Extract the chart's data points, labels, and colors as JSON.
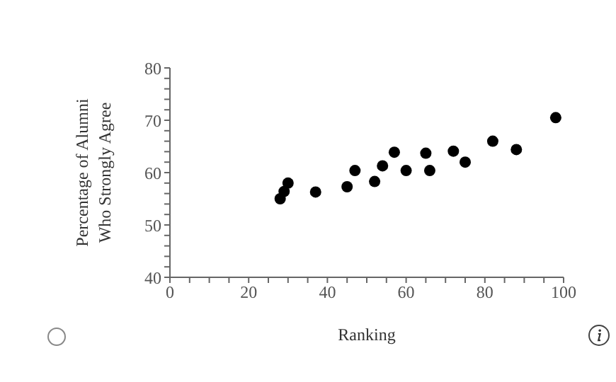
{
  "chart_data": {
    "type": "scatter",
    "xlabel": "Ranking",
    "ylabel": "Percentage of Alumni Who Strongly Agree",
    "x": [
      28,
      29,
      30,
      37,
      45,
      47,
      52,
      54,
      57,
      60,
      65,
      66,
      72,
      75,
      82,
      88,
      98
    ],
    "values": [
      55,
      56.4,
      58,
      56.3,
      57.3,
      60.4,
      58.3,
      61.3,
      63.9,
      60.4,
      63.7,
      60.4,
      64.1,
      62,
      66,
      64.4,
      70.5
    ],
    "color": "#000000",
    "marker": "circle",
    "grid": false,
    "xlim": [
      0,
      100
    ],
    "xticks": [
      0,
      {
        "value": 5,
        "label": null
      },
      {
        "value": 10,
        "label": null
      },
      {
        "value": 15,
        "label": null
      },
      20,
      {
        "value": 25,
        "label": null
      },
      {
        "value": 30,
        "label": null
      },
      {
        "value": 35,
        "label": null
      },
      40,
      {
        "value": 45,
        "label": null
      },
      {
        "value": 50,
        "label": null
      },
      {
        "value": 55,
        "label": null
      },
      60,
      {
        "value": 65,
        "label": null
      },
      {
        "value": 70,
        "label": null
      },
      {
        "value": 75,
        "label": null
      },
      80,
      {
        "value": 85,
        "label": null
      },
      {
        "value": 90,
        "label": null
      },
      {
        "value": 95,
        "label": null
      },
      100
    ],
    "ylim": [
      40,
      80
    ],
    "yticks": [
      40,
      {
        "value": 42,
        "label": null
      },
      {
        "value": 44,
        "label": null
      },
      {
        "value": 46,
        "label": null
      },
      {
        "value": 48,
        "label": null
      },
      50,
      {
        "value": 52,
        "label": null
      },
      {
        "value": 54,
        "label": null
      },
      {
        "value": 56,
        "label": null
      },
      {
        "value": 58,
        "label": null
      },
      60,
      {
        "value": 62,
        "label": null
      },
      {
        "value": 64,
        "label": null
      },
      {
        "value": 66,
        "label": null
      },
      {
        "value": 68,
        "label": null
      },
      70,
      {
        "value": 72,
        "label": null
      },
      {
        "value": 74,
        "label": null
      },
      {
        "value": 76,
        "label": null
      },
      {
        "value": 78,
        "label": null
      },
      80
    ]
  }
}
